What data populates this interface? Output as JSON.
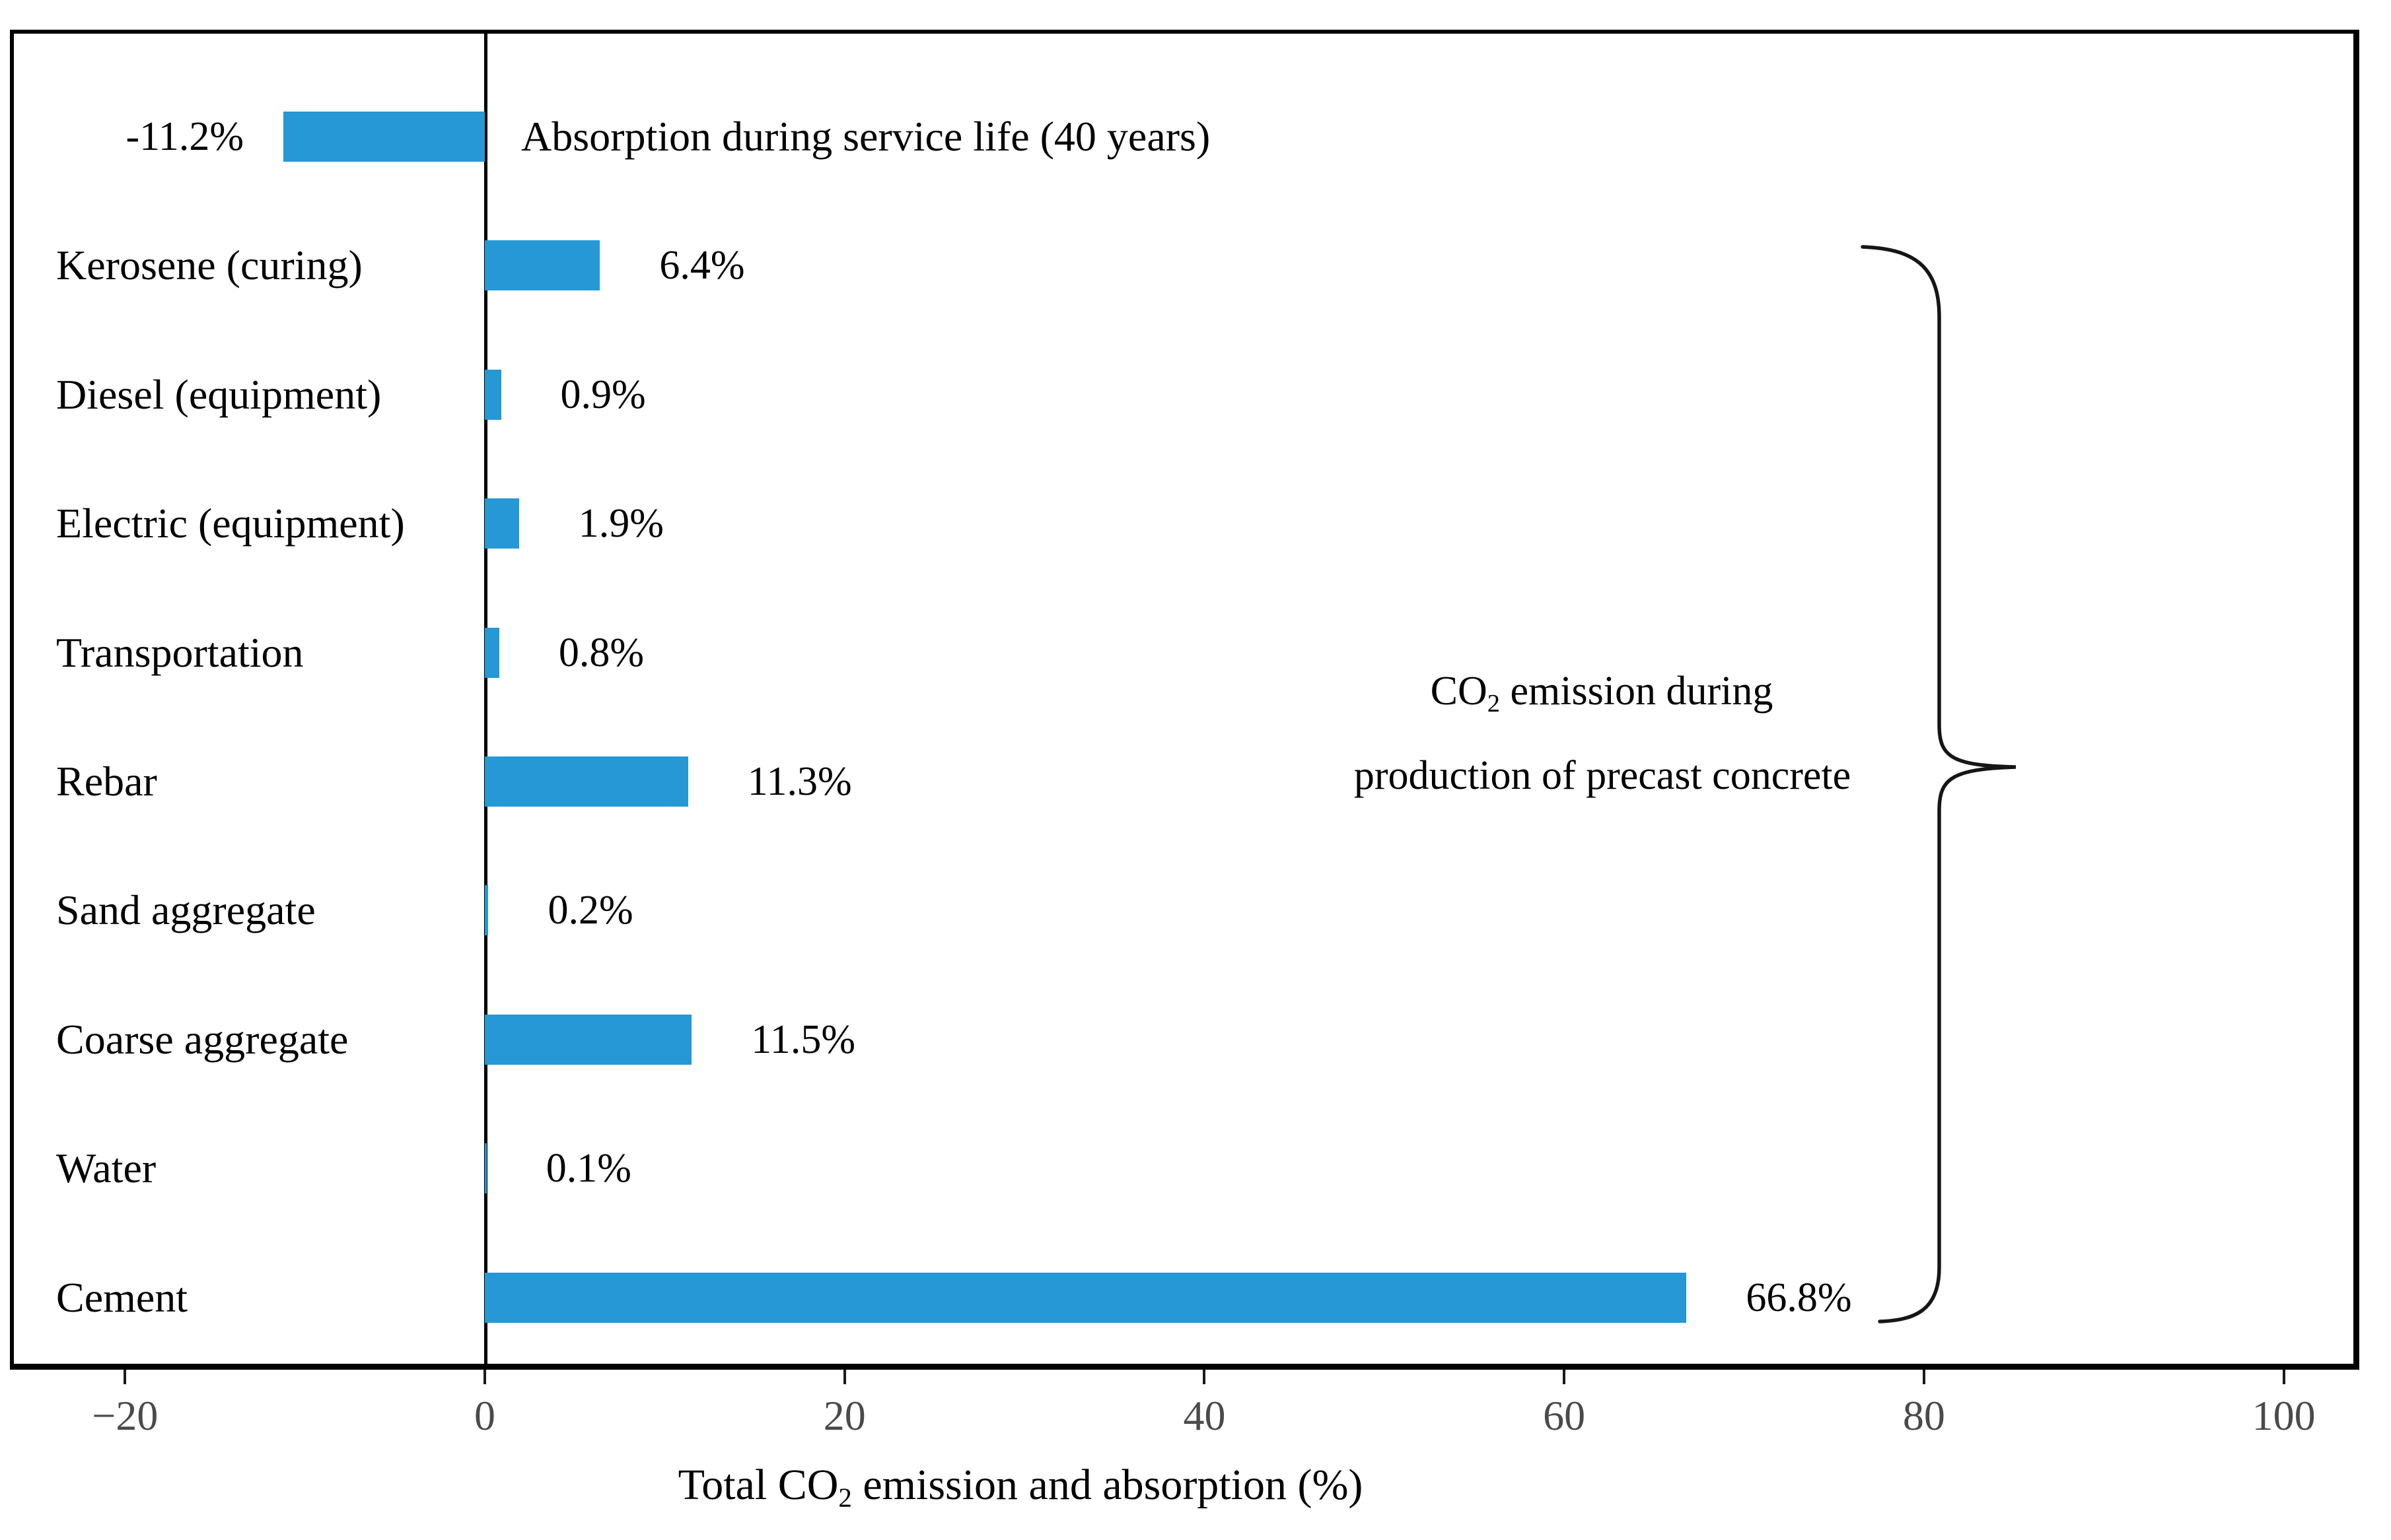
{
  "chart_data": {
    "type": "bar",
    "orientation": "horizontal",
    "bar_color": "#2598D5",
    "axis_color": "#000000",
    "tick_label_color": "#4a4a4a",
    "grid": false,
    "x_axis": {
      "min": -26.4,
      "max": 104.2,
      "ticks": [
        {
          "value": -20,
          "label": "−20"
        },
        {
          "value": 0,
          "label": "0"
        },
        {
          "value": 20,
          "label": "20"
        },
        {
          "value": 40,
          "label": "40"
        },
        {
          "value": 60,
          "label": "60"
        },
        {
          "value": 80,
          "label": "80"
        },
        {
          "value": 100,
          "label": "100"
        }
      ]
    },
    "xlabel": {
      "prefix": "Total CO",
      "sub": "2",
      "suffix": " emission and absorption (%)"
    },
    "categories": [
      "Absorption during service life (40 years)",
      "Kerosene (curing)",
      "Diesel (equipment)",
      "Electric (equipment)",
      "Transportation",
      "Rebar",
      "Sand aggregate",
      "Coarse aggregate",
      "Water",
      "Cement"
    ],
    "values": [
      -11.2,
      6.4,
      0.9,
      1.9,
      0.8,
      11.3,
      0.2,
      11.5,
      0.1,
      66.8
    ],
    "rows": [
      {
        "label": "Absorption during service life (40 years)",
        "value": -11.2,
        "value_label": "-11.2%"
      },
      {
        "label": "Kerosene (curing)",
        "value": 6.4,
        "value_label": "6.4%"
      },
      {
        "label": "Diesel (equipment)",
        "value": 0.9,
        "value_label": "0.9%"
      },
      {
        "label": "Electric (equipment)",
        "value": 1.9,
        "value_label": "1.9%"
      },
      {
        "label": "Transportation",
        "value": 0.8,
        "value_label": "0.8%"
      },
      {
        "label": "Rebar",
        "value": 11.3,
        "value_label": "11.3%"
      },
      {
        "label": "Sand aggregate",
        "value": 0.2,
        "value_label": "0.2%"
      },
      {
        "label": "Coarse aggregate",
        "value": 11.5,
        "value_label": "11.5%"
      },
      {
        "label": "Water",
        "value": 0.1,
        "value_label": "0.1%"
      },
      {
        "label": "Cement",
        "value": 66.8,
        "value_label": "66.8%"
      }
    ],
    "annotation": {
      "line1": {
        "prefix": "CO",
        "sub": "2",
        "suffix": " emission during"
      },
      "line2": "production of precast concrete"
    }
  }
}
